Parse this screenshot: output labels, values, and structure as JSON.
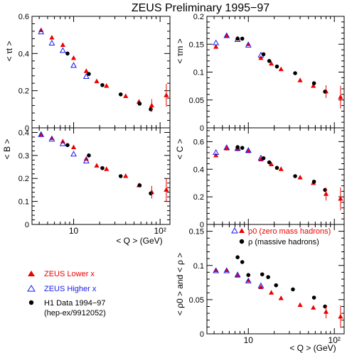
{
  "title": "ZEUS Preliminary 1995−97",
  "legend": {
    "zeus_lower": "ZEUS Lower x",
    "zeus_higher": "ZEUS Higher x",
    "h1_line1": "H1 Data 1994−97",
    "h1_line2": "(hep-ex/9912052)"
  },
  "colors": {
    "zeus_lower": "#ee0000",
    "zeus_higher": "#1a1aee",
    "h1": "#000000",
    "axes": "#000000"
  },
  "chart_data": [
    {
      "type": "scatter",
      "panel": "tau_t",
      "ylabel": "< τt >",
      "xscale": "log",
      "xlim": [
        3.3,
        130
      ],
      "ylim": [
        0,
        0.6
      ],
      "yticks": [
        0,
        0.2,
        0.4,
        0.6
      ],
      "yticklabels": [
        "0",
        "0.2",
        "0.4",
        "0.6"
      ],
      "series": [
        {
          "name": "ZEUS Lower x",
          "marker": "filled-triangle",
          "x": [
            4.2,
            5.6,
            7.5,
            10,
            14,
            18.5,
            24,
            40,
            57,
            80,
            118
          ],
          "y": [
            0.525,
            0.485,
            0.445,
            0.375,
            0.305,
            0.25,
            0.225,
            0.17,
            0.14,
            0.12,
            0.175
          ]
        },
        {
          "name": "ZEUS Higher x",
          "marker": "open-triangle",
          "x": [
            4.2,
            5.6,
            7.5,
            10,
            14
          ],
          "y": [
            0.515,
            0.455,
            0.415,
            0.335,
            0.275
          ]
        },
        {
          "name": "H1 Data 1994−97",
          "marker": "circle",
          "x": [
            8.5,
            15,
            21.5,
            35,
            58,
            78
          ],
          "y": [
            0.4,
            0.29,
            0.23,
            0.18,
            0.13,
            0.1
          ]
        }
      ]
    },
    {
      "type": "scatter",
      "panel": "tau_m",
      "ylabel": "< τm >",
      "xscale": "log",
      "xlim": [
        3.3,
        130
      ],
      "ylim": [
        0,
        0.2
      ],
      "yticks": [
        0,
        0.05,
        0.1,
        0.15,
        0.2
      ],
      "yticklabels": [
        "0",
        "0.05",
        "0.1",
        "0.15",
        "0.2"
      ],
      "series": [
        {
          "name": "ZEUS Lower x",
          "marker": "filled-triangle",
          "x": [
            4.2,
            5.6,
            7.5,
            10,
            14,
            18.5,
            24,
            40,
            57,
            80,
            118
          ],
          "y": [
            0.145,
            0.165,
            0.16,
            0.15,
            0.125,
            0.115,
            0.105,
            0.085,
            0.075,
            0.065,
            0.055
          ]
        },
        {
          "name": "ZEUS Higher x",
          "marker": "open-triangle",
          "x": [
            4.2,
            5.6,
            7.5,
            10,
            14
          ],
          "y": [
            0.152,
            0.165,
            0.158,
            0.148,
            0.13
          ]
        },
        {
          "name": "H1 Data 1994−97",
          "marker": "circle",
          "x": [
            7.5,
            8.5,
            15,
            17.5,
            21.5,
            35,
            58,
            78
          ],
          "y": [
            0.16,
            0.16,
            0.132,
            0.12,
            0.11,
            0.098,
            0.08,
            0.065
          ]
        }
      ]
    },
    {
      "type": "scatter",
      "panel": "B",
      "ylabel": "< B >",
      "xscale": "log",
      "xlim": [
        3.3,
        130
      ],
      "ylim": [
        0,
        0.42
      ],
      "xlabel": "",
      "yticks": [
        0,
        0.1,
        0.2,
        0.3,
        0.4
      ],
      "yticklabels": [
        "0",
        "0.1",
        "0.2",
        "0.3",
        "0.4"
      ],
      "xticks": [
        10,
        100
      ],
      "xticklabels": [
        "10",
        "10²"
      ],
      "series": [
        {
          "name": "ZEUS Lower x",
          "marker": "filled-triangle",
          "x": [
            4.2,
            5.6,
            7.5,
            10,
            14,
            18.5,
            24,
            40,
            57,
            80,
            118
          ],
          "y": [
            0.39,
            0.375,
            0.36,
            0.335,
            0.285,
            0.255,
            0.24,
            0.21,
            0.17,
            0.14,
            0.15
          ]
        },
        {
          "name": "ZEUS Higher x",
          "marker": "open-triangle",
          "x": [
            4.2,
            5.6,
            7.5,
            10,
            14
          ],
          "y": [
            0.39,
            0.37,
            0.35,
            0.305,
            0.275
          ]
        },
        {
          "name": "H1 Data 1994−97",
          "marker": "circle",
          "x": [
            8.5,
            15,
            21.5,
            35,
            58,
            78
          ],
          "y": [
            0.345,
            0.3,
            0.245,
            0.21,
            0.17,
            0.135
          ]
        }
      ]
    },
    {
      "type": "scatter",
      "panel": "C",
      "ylabel": "< C >",
      "xscale": "log",
      "xlim": [
        3.3,
        130
      ],
      "ylim": [
        0,
        0.7
      ],
      "yticks": [
        0,
        0.2,
        0.4,
        0.6
      ],
      "yticklabels": [
        "0",
        "0.2",
        "0.4",
        "0.6"
      ],
      "series": [
        {
          "name": "ZEUS Lower x",
          "marker": "filled-triangle",
          "x": [
            4.2,
            5.6,
            7.5,
            10,
            14,
            18.5,
            24,
            40,
            57,
            80,
            118
          ],
          "y": [
            0.5,
            0.55,
            0.545,
            0.53,
            0.47,
            0.435,
            0.4,
            0.34,
            0.3,
            0.22,
            0.185
          ]
        },
        {
          "name": "ZEUS Higher x",
          "marker": "open-triangle",
          "x": [
            4.2,
            5.6,
            7.5,
            10,
            14
          ],
          "y": [
            0.52,
            0.555,
            0.55,
            0.535,
            0.48
          ]
        },
        {
          "name": "H1 Data 1994−97",
          "marker": "circle",
          "x": [
            7.5,
            8.5,
            15,
            17.5,
            21.5,
            35,
            58,
            78
          ],
          "y": [
            0.56,
            0.555,
            0.48,
            0.45,
            0.41,
            0.35,
            0.31,
            0.25
          ]
        }
      ]
    },
    {
      "type": "scatter",
      "panel": "rho",
      "ylabel": "< ρ0 > and < ρ >",
      "xscale": "log",
      "xlim": [
        3.3,
        130
      ],
      "ylim": [
        0,
        0.16
      ],
      "xlabel": "",
      "yticks": [
        0,
        0.05,
        0.1,
        0.15
      ],
      "yticklabels": [
        "0",
        "0.05",
        "0.1",
        "0.15"
      ],
      "xticks": [
        10,
        100
      ],
      "xticklabels": [
        "10",
        "10²"
      ],
      "legend_rho0": "ρ0 (zero mass hadrons)",
      "legend_rho": "ρ (massive hadrons)",
      "series": [
        {
          "name": "ZEUS Lower x",
          "marker": "filled-triangle",
          "x": [
            4.2,
            5.6,
            7.5,
            10,
            14,
            18.5,
            24,
            40,
            57,
            80,
            118
          ],
          "y": [
            0.093,
            0.093,
            0.085,
            0.078,
            0.068,
            0.06,
            0.052,
            0.042,
            0.038,
            0.032,
            0.025
          ]
        },
        {
          "name": "ZEUS Higher x",
          "marker": "open-triangle",
          "x": [
            4.2,
            5.6,
            7.5,
            10,
            14
          ],
          "y": [
            0.092,
            0.092,
            0.086,
            0.077,
            0.07
          ]
        },
        {
          "name": "H1 Data 1994−97",
          "marker": "circle",
          "x": [
            7.5,
            8.5,
            10,
            14.5,
            17,
            21,
            33,
            58,
            78
          ],
          "y": [
            0.112,
            0.105,
            0.086,
            0.087,
            0.083,
            0.071,
            0.065,
            0.053,
            0.04
          ]
        }
      ]
    }
  ],
  "x_axis": {
    "label": "< Q > (GeV)"
  }
}
